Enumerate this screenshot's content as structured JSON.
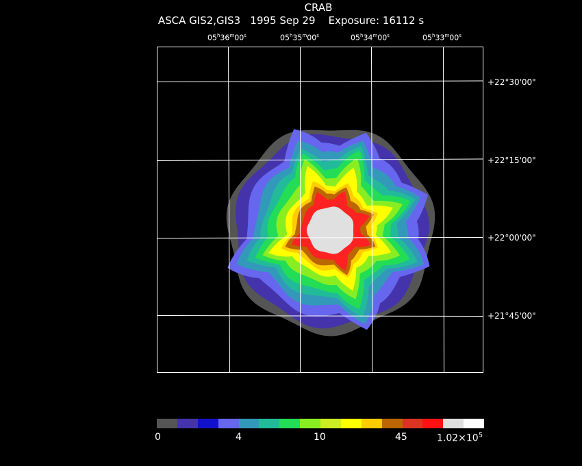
{
  "header": {
    "object": "CRAB",
    "subtitle": "ASCA GIS2,GIS3   1995 Sep 29    Exposure: 16112 s"
  },
  "axes": {
    "ra_ticks": [
      {
        "h": "05",
        "m": "36",
        "s": "00"
      },
      {
        "h": "05",
        "m": "35",
        "s": "00"
      },
      {
        "h": "05",
        "m": "34",
        "s": "00"
      },
      {
        "h": "05",
        "m": "33",
        "s": "00"
      }
    ],
    "dec_ticks": [
      "+22°30'00\"",
      "+22°15'00\"",
      "+22°00'00\"",
      "+21°45'00\""
    ]
  },
  "colorbar": {
    "colors": [
      "#555555",
      "#4433aa",
      "#1111cc",
      "#6666ee",
      "#3399bb",
      "#22bb99",
      "#22dd55",
      "#88ee22",
      "#ccee22",
      "#ffff00",
      "#ffcc00",
      "#bb6600",
      "#dd3322",
      "#ff1111",
      "#e0e0e0",
      "#ffffff"
    ],
    "labels": [
      "0",
      "4",
      "10",
      "45",
      "1.02×10"
    ],
    "exponent": "5"
  },
  "image_colors": {
    "background": "#000000",
    "grid": "#ffffff",
    "rings": [
      "#555555",
      "#4433aa",
      "#6666ee",
      "#3399bb",
      "#22bb99",
      "#22dd55",
      "#88ee22",
      "#ffff00",
      "#ffcc00",
      "#bb6600",
      "#ff2222",
      "#e0e0e0"
    ]
  }
}
